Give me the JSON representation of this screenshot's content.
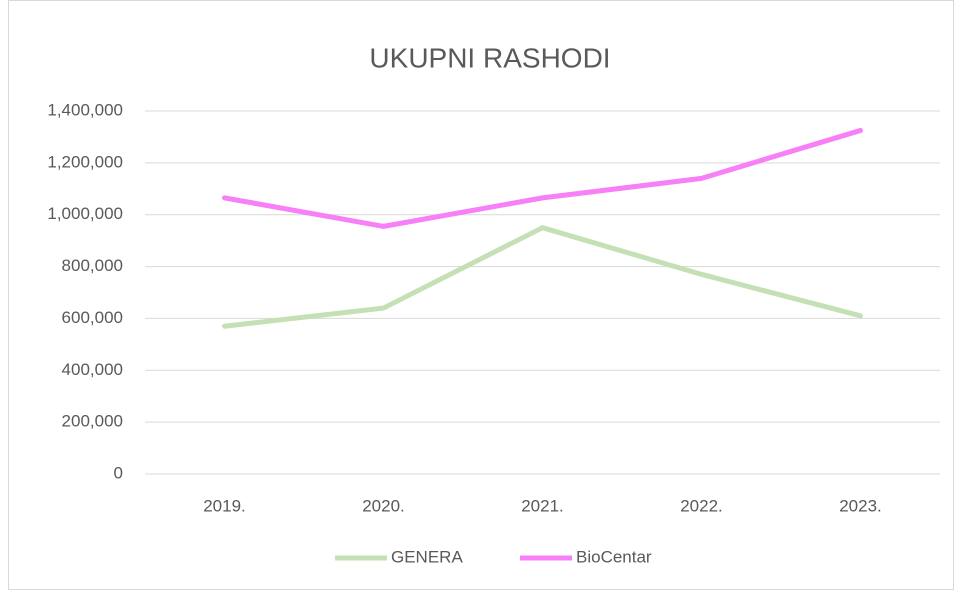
{
  "chart_data": {
    "type": "line",
    "title": "UKUPNI RASHODI",
    "categories": [
      "2019.",
      "2020.",
      "2021.",
      "2022.",
      "2023."
    ],
    "series": [
      {
        "name": "GENERA",
        "color": "#c5e0b4",
        "values": [
          570000,
          640000,
          950000,
          770000,
          610000
        ]
      },
      {
        "name": "BioCentar",
        "color": "#f77ff7",
        "values": [
          1065000,
          955000,
          1065000,
          1140000,
          1325000
        ]
      }
    ],
    "ylim": [
      0,
      1400000
    ],
    "yticks": [
      0,
      {
        "value": 200000,
        "label": "200,000"
      },
      {
        "value": 400000,
        "label": "400,000"
      },
      {
        "value": 600000,
        "label": "600,000"
      },
      {
        "value": 800000,
        "label": "800,000"
      },
      {
        "value": 1000000,
        "label": "1,000,000"
      },
      {
        "value": 1200000,
        "label": "1,200,000"
      },
      {
        "value": 1400000,
        "label": "1,400,000"
      }
    ],
    "grid": true,
    "legend": "bottom"
  }
}
